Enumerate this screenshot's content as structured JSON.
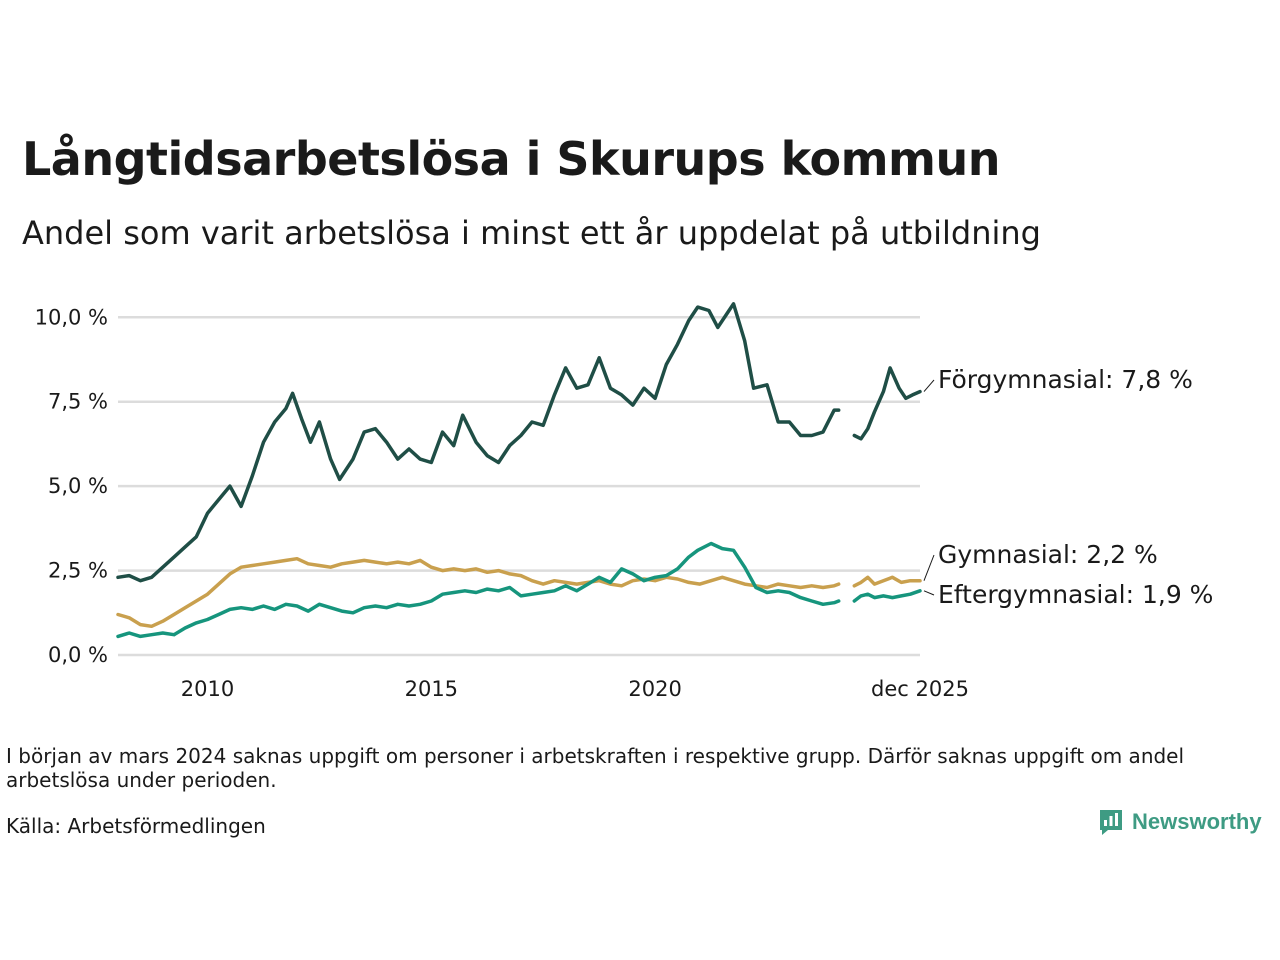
{
  "chart_data": {
    "type": "line",
    "title": "Långtidsarbetslösa i Skurups kommun",
    "subtitle": "Andel som varit arbetslösa i minst ett år uppdelat på utbildning",
    "ylim": [
      0,
      10.6
    ],
    "yticks": [
      0,
      2.5,
      5,
      7.5,
      10
    ],
    "ytick_labels": [
      "0,0 %",
      "2,5 %",
      "5,0 %",
      "7,5 %",
      "10,0 %"
    ],
    "xticks": [
      2010,
      2015,
      2020,
      2025.917
    ],
    "xtick_labels": [
      "2010",
      "2015",
      "2020",
      "dec 2025"
    ],
    "xlim": [
      2008.0,
      2025.917
    ],
    "grid": true,
    "gap": [
      2024.1,
      2024.45
    ],
    "series": [
      {
        "name": "Förgymnasial",
        "end_label": "Förgymnasial: 7,8 %",
        "color": "#1f4e46",
        "points": [
          [
            2008.0,
            2.3
          ],
          [
            2008.25,
            2.35
          ],
          [
            2008.5,
            2.2
          ],
          [
            2008.75,
            2.3
          ],
          [
            2009.0,
            2.6
          ],
          [
            2009.25,
            2.9
          ],
          [
            2009.5,
            3.2
          ],
          [
            2009.75,
            3.5
          ],
          [
            2010.0,
            4.2
          ],
          [
            2010.25,
            4.6
          ],
          [
            2010.5,
            5.0
          ],
          [
            2010.75,
            4.4
          ],
          [
            2011.0,
            5.3
          ],
          [
            2011.25,
            6.3
          ],
          [
            2011.5,
            6.9
          ],
          [
            2011.75,
            7.3
          ],
          [
            2011.9,
            7.75
          ],
          [
            2012.1,
            7.0
          ],
          [
            2012.3,
            6.3
          ],
          [
            2012.5,
            6.9
          ],
          [
            2012.75,
            5.8
          ],
          [
            2012.95,
            5.2
          ],
          [
            2013.25,
            5.8
          ],
          [
            2013.5,
            6.6
          ],
          [
            2013.75,
            6.7
          ],
          [
            2014.0,
            6.3
          ],
          [
            2014.25,
            5.8
          ],
          [
            2014.5,
            6.1
          ],
          [
            2014.75,
            5.8
          ],
          [
            2015.0,
            5.7
          ],
          [
            2015.25,
            6.6
          ],
          [
            2015.5,
            6.2
          ],
          [
            2015.7,
            7.1
          ],
          [
            2016.0,
            6.3
          ],
          [
            2016.25,
            5.9
          ],
          [
            2016.5,
            5.7
          ],
          [
            2016.75,
            6.2
          ],
          [
            2017.0,
            6.5
          ],
          [
            2017.25,
            6.9
          ],
          [
            2017.5,
            6.8
          ],
          [
            2017.75,
            7.7
          ],
          [
            2018.0,
            8.5
          ],
          [
            2018.25,
            7.9
          ],
          [
            2018.5,
            8.0
          ],
          [
            2018.75,
            8.8
          ],
          [
            2019.0,
            7.9
          ],
          [
            2019.25,
            7.7
          ],
          [
            2019.5,
            7.4
          ],
          [
            2019.75,
            7.9
          ],
          [
            2020.0,
            7.6
          ],
          [
            2020.25,
            8.6
          ],
          [
            2020.5,
            9.2
          ],
          [
            2020.75,
            9.9
          ],
          [
            2020.95,
            10.3
          ],
          [
            2021.2,
            10.2
          ],
          [
            2021.4,
            9.7
          ],
          [
            2021.6,
            10.1
          ],
          [
            2021.75,
            10.4
          ],
          [
            2022.0,
            9.3
          ],
          [
            2022.2,
            7.9
          ],
          [
            2022.5,
            8.0
          ],
          [
            2022.75,
            6.9
          ],
          [
            2023.0,
            6.9
          ],
          [
            2023.25,
            6.5
          ],
          [
            2023.5,
            6.5
          ],
          [
            2023.75,
            6.6
          ],
          [
            2024.0,
            7.25
          ],
          [
            2024.1,
            7.25
          ],
          [
            null,
            null
          ],
          [
            2024.45,
            6.5
          ],
          [
            2024.6,
            6.4
          ],
          [
            2024.75,
            6.7
          ],
          [
            2024.9,
            7.2
          ],
          [
            2025.1,
            7.8
          ],
          [
            2025.25,
            8.5
          ],
          [
            2025.45,
            7.9
          ],
          [
            2025.6,
            7.6
          ],
          [
            2025.75,
            7.7
          ],
          [
            2025.917,
            7.8
          ]
        ]
      },
      {
        "name": "Gymnasial",
        "end_label": "Gymnasial: 2,2 %",
        "color": "#c9a04e",
        "points": [
          [
            2008.0,
            1.2
          ],
          [
            2008.25,
            1.1
          ],
          [
            2008.5,
            0.9
          ],
          [
            2008.75,
            0.85
          ],
          [
            2009.0,
            1.0
          ],
          [
            2009.25,
            1.2
          ],
          [
            2009.5,
            1.4
          ],
          [
            2009.75,
            1.6
          ],
          [
            2010.0,
            1.8
          ],
          [
            2010.25,
            2.1
          ],
          [
            2010.5,
            2.4
          ],
          [
            2010.75,
            2.6
          ],
          [
            2011.0,
            2.65
          ],
          [
            2011.25,
            2.7
          ],
          [
            2011.5,
            2.75
          ],
          [
            2011.75,
            2.8
          ],
          [
            2012.0,
            2.85
          ],
          [
            2012.25,
            2.7
          ],
          [
            2012.5,
            2.65
          ],
          [
            2012.75,
            2.6
          ],
          [
            2013.0,
            2.7
          ],
          [
            2013.25,
            2.75
          ],
          [
            2013.5,
            2.8
          ],
          [
            2013.75,
            2.75
          ],
          [
            2014.0,
            2.7
          ],
          [
            2014.25,
            2.75
          ],
          [
            2014.5,
            2.7
          ],
          [
            2014.75,
            2.8
          ],
          [
            2015.0,
            2.6
          ],
          [
            2015.25,
            2.5
          ],
          [
            2015.5,
            2.55
          ],
          [
            2015.75,
            2.5
          ],
          [
            2016.0,
            2.55
          ],
          [
            2016.25,
            2.45
          ],
          [
            2016.5,
            2.5
          ],
          [
            2016.75,
            2.4
          ],
          [
            2017.0,
            2.35
          ],
          [
            2017.25,
            2.2
          ],
          [
            2017.5,
            2.1
          ],
          [
            2017.75,
            2.2
          ],
          [
            2018.0,
            2.15
          ],
          [
            2018.25,
            2.1
          ],
          [
            2018.5,
            2.15
          ],
          [
            2018.75,
            2.2
          ],
          [
            2019.0,
            2.1
          ],
          [
            2019.25,
            2.05
          ],
          [
            2019.5,
            2.2
          ],
          [
            2019.75,
            2.25
          ],
          [
            2020.0,
            2.2
          ],
          [
            2020.25,
            2.3
          ],
          [
            2020.5,
            2.25
          ],
          [
            2020.75,
            2.15
          ],
          [
            2021.0,
            2.1
          ],
          [
            2021.25,
            2.2
          ],
          [
            2021.5,
            2.3
          ],
          [
            2021.75,
            2.2
          ],
          [
            2022.0,
            2.1
          ],
          [
            2022.25,
            2.05
          ],
          [
            2022.5,
            2.0
          ],
          [
            2022.75,
            2.1
          ],
          [
            2023.0,
            2.05
          ],
          [
            2023.25,
            2.0
          ],
          [
            2023.5,
            2.05
          ],
          [
            2023.75,
            2.0
          ],
          [
            2024.0,
            2.05
          ],
          [
            2024.1,
            2.1
          ],
          [
            null,
            null
          ],
          [
            2024.45,
            2.05
          ],
          [
            2024.6,
            2.15
          ],
          [
            2024.75,
            2.3
          ],
          [
            2024.9,
            2.1
          ],
          [
            2025.1,
            2.2
          ],
          [
            2025.3,
            2.3
          ],
          [
            2025.5,
            2.15
          ],
          [
            2025.7,
            2.2
          ],
          [
            2025.917,
            2.2
          ]
        ]
      },
      {
        "name": "Eftergymnasial",
        "end_label": "Eftergymnasial: 1,9 %",
        "color": "#16957d",
        "points": [
          [
            2008.0,
            0.55
          ],
          [
            2008.25,
            0.65
          ],
          [
            2008.5,
            0.55
          ],
          [
            2008.75,
            0.6
          ],
          [
            2009.0,
            0.65
          ],
          [
            2009.25,
            0.6
          ],
          [
            2009.5,
            0.8
          ],
          [
            2009.75,
            0.95
          ],
          [
            2010.0,
            1.05
          ],
          [
            2010.25,
            1.2
          ],
          [
            2010.5,
            1.35
          ],
          [
            2010.75,
            1.4
          ],
          [
            2011.0,
            1.35
          ],
          [
            2011.25,
            1.45
          ],
          [
            2011.5,
            1.35
          ],
          [
            2011.75,
            1.5
          ],
          [
            2012.0,
            1.45
          ],
          [
            2012.25,
            1.3
          ],
          [
            2012.5,
            1.5
          ],
          [
            2012.75,
            1.4
          ],
          [
            2013.0,
            1.3
          ],
          [
            2013.25,
            1.25
          ],
          [
            2013.5,
            1.4
          ],
          [
            2013.75,
            1.45
          ],
          [
            2014.0,
            1.4
          ],
          [
            2014.25,
            1.5
          ],
          [
            2014.5,
            1.45
          ],
          [
            2014.75,
            1.5
          ],
          [
            2015.0,
            1.6
          ],
          [
            2015.25,
            1.8
          ],
          [
            2015.5,
            1.85
          ],
          [
            2015.75,
            1.9
          ],
          [
            2016.0,
            1.85
          ],
          [
            2016.25,
            1.95
          ],
          [
            2016.5,
            1.9
          ],
          [
            2016.75,
            2.0
          ],
          [
            2017.0,
            1.75
          ],
          [
            2017.25,
            1.8
          ],
          [
            2017.5,
            1.85
          ],
          [
            2017.75,
            1.9
          ],
          [
            2018.0,
            2.05
          ],
          [
            2018.25,
            1.9
          ],
          [
            2018.5,
            2.1
          ],
          [
            2018.75,
            2.3
          ],
          [
            2019.0,
            2.15
          ],
          [
            2019.25,
            2.55
          ],
          [
            2019.5,
            2.4
          ],
          [
            2019.75,
            2.2
          ],
          [
            2020.0,
            2.3
          ],
          [
            2020.25,
            2.35
          ],
          [
            2020.5,
            2.55
          ],
          [
            2020.75,
            2.9
          ],
          [
            2020.95,
            3.1
          ],
          [
            2021.25,
            3.3
          ],
          [
            2021.5,
            3.15
          ],
          [
            2021.75,
            3.1
          ],
          [
            2022.0,
            2.6
          ],
          [
            2022.25,
            2.0
          ],
          [
            2022.5,
            1.85
          ],
          [
            2022.75,
            1.9
          ],
          [
            2023.0,
            1.85
          ],
          [
            2023.25,
            1.7
          ],
          [
            2023.5,
            1.6
          ],
          [
            2023.75,
            1.5
          ],
          [
            2024.0,
            1.55
          ],
          [
            2024.1,
            1.6
          ],
          [
            null,
            null
          ],
          [
            2024.45,
            1.6
          ],
          [
            2024.6,
            1.75
          ],
          [
            2024.75,
            1.8
          ],
          [
            2024.9,
            1.7
          ],
          [
            2025.1,
            1.75
          ],
          [
            2025.3,
            1.7
          ],
          [
            2025.5,
            1.75
          ],
          [
            2025.7,
            1.8
          ],
          [
            2025.917,
            1.9
          ]
        ]
      }
    ]
  },
  "footnote": "I början av mars 2024 saknas uppgift om personer i arbetskraften i respektive grupp. Därför saknas uppgift om andel arbetslösa under perioden.",
  "source": "Källa: Arbetsförmedlingen",
  "brand": {
    "name": "Newsworthy",
    "icon": "newsworthy-logo-icon",
    "color": "#3e9b83"
  }
}
